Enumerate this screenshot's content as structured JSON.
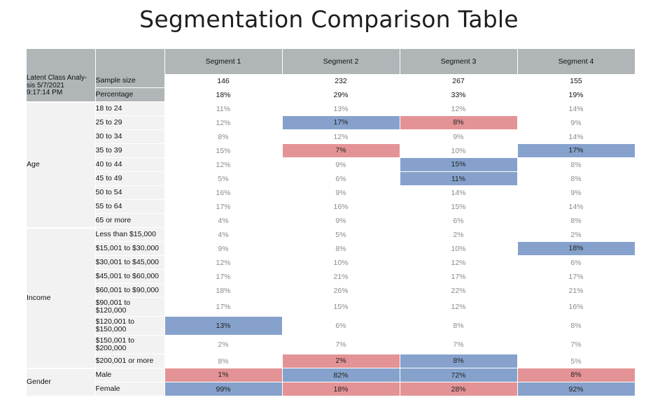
{
  "title": "Segmentation Comparison Table",
  "colors": {
    "header_gray": "#b0b5b8",
    "label_bg": "#f2f2f2",
    "high_blue": "#86a2cc",
    "low_red": "#e39396"
  },
  "columns": [
    "Segment 1",
    "Segment 2",
    "Segment 3",
    "Segment 4"
  ],
  "meta_label": "Latent Class Analy-\nsis 5/7/2021\n9:17:14 PM",
  "sample_size": {
    "label": "Sample size",
    "values": [
      "146",
      "232",
      "267",
      "155"
    ]
  },
  "percentage": {
    "label": "Percentage",
    "values": [
      "18%",
      "29%",
      "33%",
      "19%"
    ]
  },
  "groups": [
    {
      "name": "Age",
      "rows": [
        {
          "label": "18 to 24",
          "values": [
            "11%",
            "13%",
            "12%",
            "14%"
          ],
          "highlight": [
            "",
            "",
            "",
            ""
          ]
        },
        {
          "label": "25 to 29",
          "values": [
            "12%",
            "17%",
            "8%",
            "9%"
          ],
          "highlight": [
            "",
            "blue",
            "red",
            ""
          ]
        },
        {
          "label": "30 to 34",
          "values": [
            "8%",
            "12%",
            "9%",
            "14%"
          ],
          "highlight": [
            "",
            "",
            "",
            ""
          ]
        },
        {
          "label": "35 to 39",
          "values": [
            "15%",
            "7%",
            "10%",
            "17%"
          ],
          "highlight": [
            "",
            "red",
            "",
            "blue"
          ]
        },
        {
          "label": "40 to 44",
          "values": [
            "12%",
            "9%",
            "15%",
            "8%"
          ],
          "highlight": [
            "",
            "",
            "blue",
            ""
          ]
        },
        {
          "label": "45 to 49",
          "values": [
            "5%",
            "6%",
            "11%",
            "8%"
          ],
          "highlight": [
            "",
            "",
            "blue",
            ""
          ]
        },
        {
          "label": "50 to 54",
          "values": [
            "16%",
            "9%",
            "14%",
            "9%"
          ],
          "highlight": [
            "",
            "",
            "",
            ""
          ]
        },
        {
          "label": "55 to 64",
          "values": [
            "17%",
            "16%",
            "15%",
            "14%"
          ],
          "highlight": [
            "",
            "",
            "",
            ""
          ]
        },
        {
          "label": "65 or more",
          "values": [
            "4%",
            "9%",
            "6%",
            "8%"
          ],
          "highlight": [
            "",
            "",
            "",
            ""
          ]
        }
      ]
    },
    {
      "name": "Income",
      "rows": [
        {
          "label": "Less than $15,000",
          "values": [
            "4%",
            "5%",
            "2%",
            "2%"
          ],
          "highlight": [
            "",
            "",
            "",
            ""
          ]
        },
        {
          "label": "$15,001 to $30,000",
          "values": [
            "9%",
            "8%",
            "10%",
            "18%"
          ],
          "highlight": [
            "",
            "",
            "",
            "blue"
          ]
        },
        {
          "label": "$30,001 to $45,000",
          "values": [
            "12%",
            "10%",
            "12%",
            "6%"
          ],
          "highlight": [
            "",
            "",
            "",
            ""
          ]
        },
        {
          "label": "$45,001 to $60,000",
          "values": [
            "17%",
            "21%",
            "17%",
            "17%"
          ],
          "highlight": [
            "",
            "",
            "",
            ""
          ]
        },
        {
          "label": "$60,001 to $90,000",
          "values": [
            "18%",
            "26%",
            "22%",
            "21%"
          ],
          "highlight": [
            "",
            "",
            "",
            ""
          ]
        },
        {
          "label": "$90,001 to\n$120,000",
          "values": [
            "17%",
            "15%",
            "12%",
            "16%"
          ],
          "highlight": [
            "",
            "",
            "",
            ""
          ]
        },
        {
          "label": "$120,001 to\n$150,000",
          "values": [
            "13%",
            "6%",
            "8%",
            "8%"
          ],
          "highlight": [
            "blue",
            "",
            "",
            ""
          ]
        },
        {
          "label": "$150,001 to\n$200,000",
          "values": [
            "2%",
            "7%",
            "7%",
            "7%"
          ],
          "highlight": [
            "",
            "",
            "",
            ""
          ]
        },
        {
          "label": "$200,001 or more",
          "values": [
            "8%",
            "2%",
            "8%",
            "5%"
          ],
          "highlight": [
            "",
            "red",
            "blue",
            ""
          ]
        }
      ]
    },
    {
      "name": "Gender",
      "rows": [
        {
          "label": "Male",
          "values": [
            "1%",
            "82%",
            "72%",
            "8%"
          ],
          "highlight": [
            "red",
            "blue",
            "blue",
            "red"
          ]
        },
        {
          "label": "Female",
          "values": [
            "99%",
            "18%",
            "28%",
            "92%"
          ],
          "highlight": [
            "blue",
            "red",
            "red",
            "blue"
          ]
        }
      ]
    }
  ]
}
